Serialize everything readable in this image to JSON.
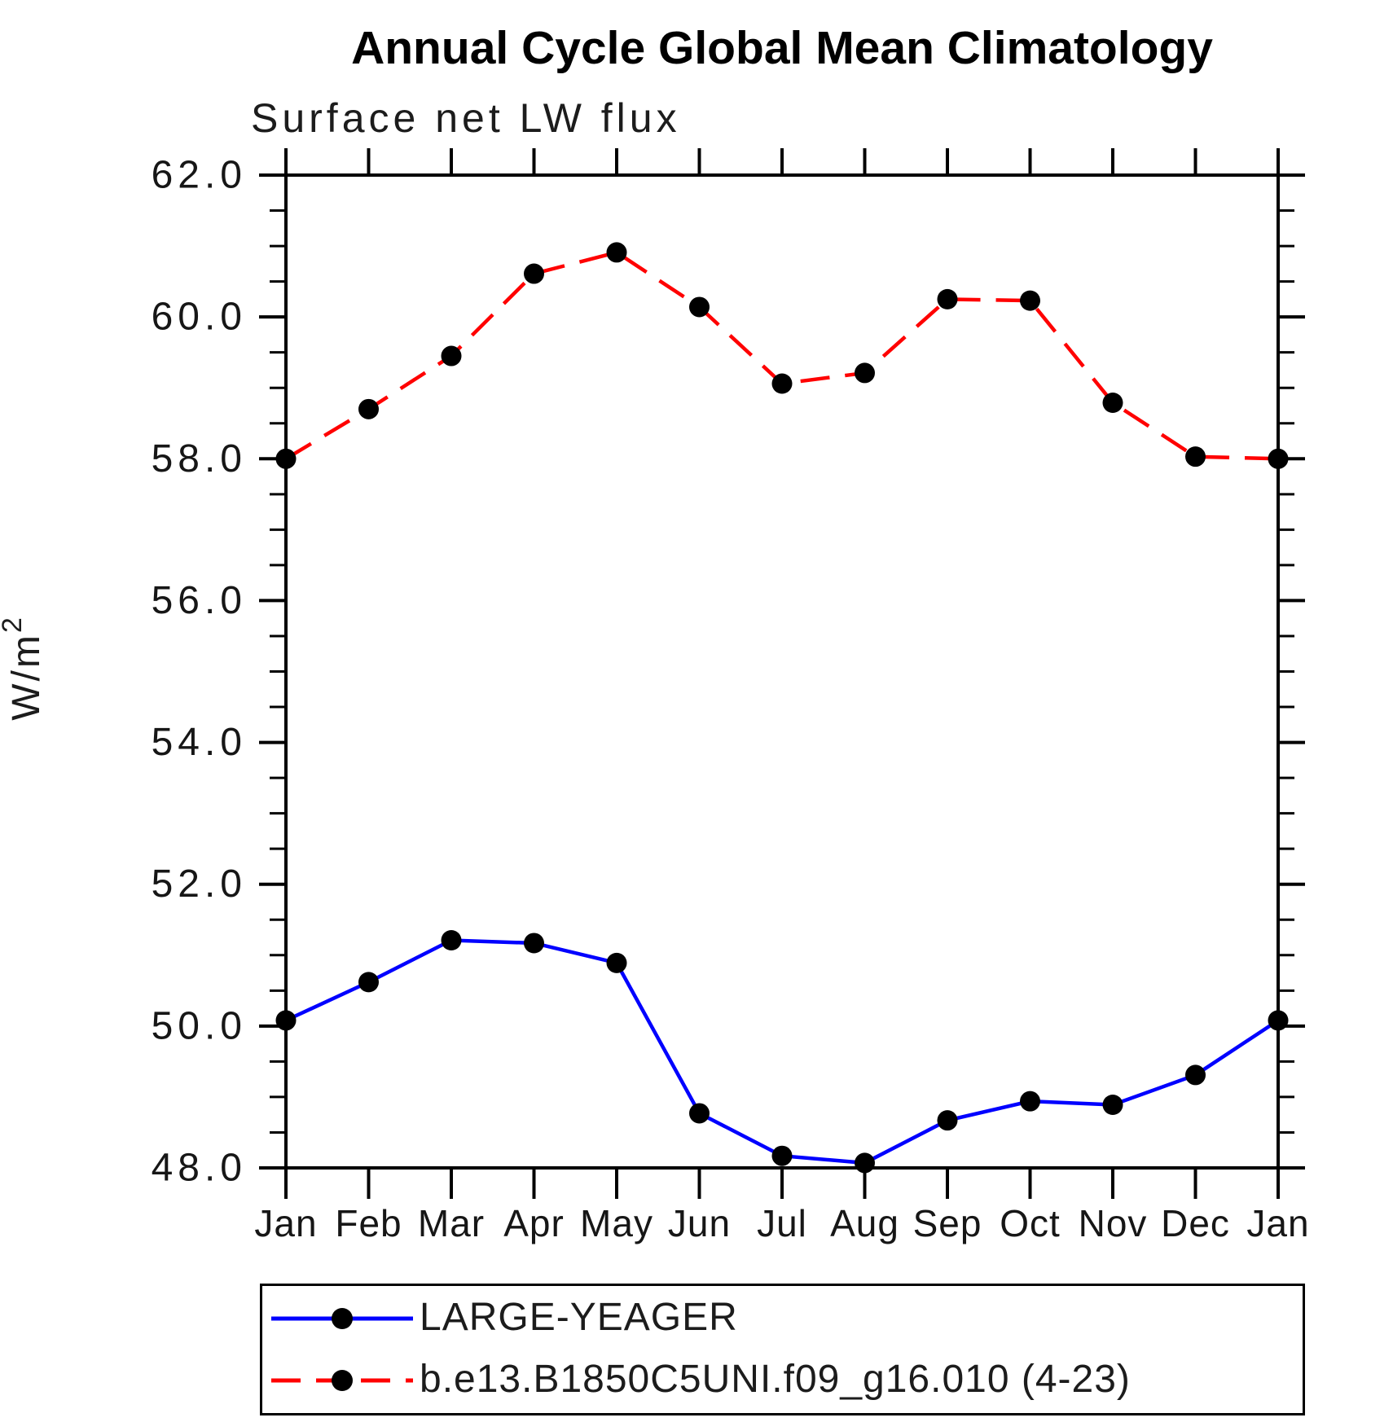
{
  "chart_data": {
    "type": "line",
    "title": "Annual Cycle Global Mean Climatology",
    "subtitle": "Surface net LW flux",
    "ylabel": "W/m²",
    "ylabel_base": "W/m",
    "ylabel_sup": "2",
    "xlabel": "",
    "categories": [
      "Jan",
      "Feb",
      "Mar",
      "Apr",
      "May",
      "Jun",
      "Jul",
      "Aug",
      "Sep",
      "Oct",
      "Nov",
      "Dec",
      "Jan"
    ],
    "ylim": [
      48.0,
      62.0
    ],
    "ytick_major": [
      48.0,
      50.0,
      52.0,
      54.0,
      56.0,
      58.0,
      60.0,
      62.0
    ],
    "ytick_labels": [
      "48.0",
      "50.0",
      "52.0",
      "54.0",
      "56.0",
      "58.0",
      "60.0",
      "62.0"
    ],
    "ytick_minor_step": 0.5,
    "grid": false,
    "legend_position": "bottom-left",
    "frame": "box-with-outward-ticks",
    "colors": {
      "axis": "#000000",
      "marker": "#000000",
      "background": "#ffffff"
    },
    "series": [
      {
        "name": "LARGE-YEAGER",
        "color": "#0000ff",
        "line_style": "solid",
        "marker": "filled-circle",
        "marker_color": "#000000",
        "values": [
          50.08,
          50.62,
          51.21,
          51.17,
          50.89,
          48.77,
          48.17,
          48.07,
          48.67,
          48.94,
          48.89,
          49.31,
          50.08
        ]
      },
      {
        "name": "b.e13.B1850C5UNI.f09_g16.010 (4-23)",
        "color": "#ff0000",
        "line_style": "dashed",
        "marker": "filled-circle",
        "marker_color": "#000000",
        "values": [
          58.0,
          58.7,
          59.45,
          60.61,
          60.91,
          60.14,
          59.06,
          59.21,
          60.25,
          60.23,
          58.79,
          58.03,
          58.0
        ]
      }
    ]
  }
}
